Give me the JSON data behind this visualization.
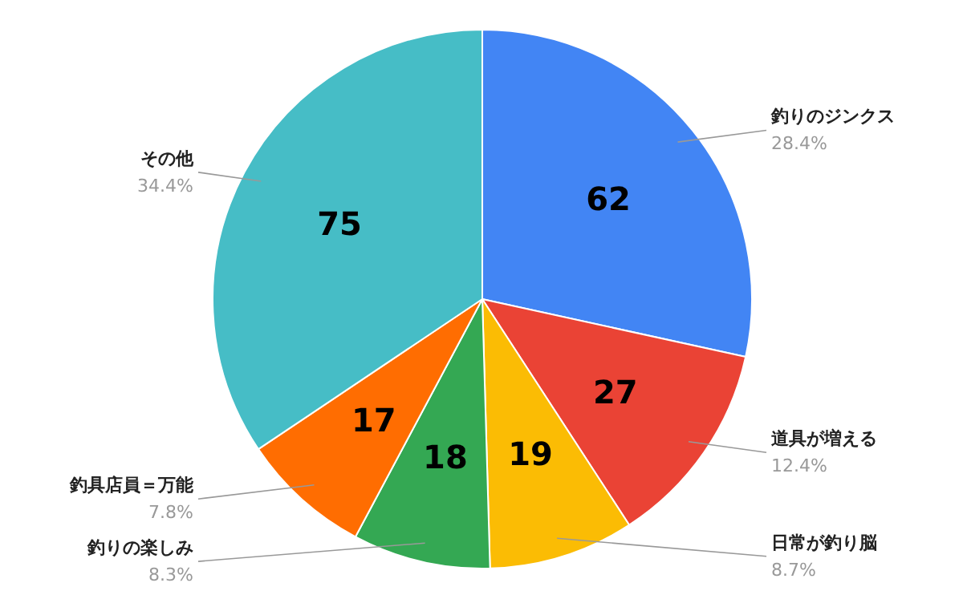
{
  "chart_data": {
    "type": "pie",
    "categories": [
      "釣りのジンクス",
      "道具が増える",
      "日常が釣り脳",
      "釣りの楽しみ",
      "釣具店員＝万能",
      "その他"
    ],
    "values": [
      62,
      27,
      19,
      18,
      17,
      75
    ],
    "colors": [
      "#4285f4",
      "#ea4335",
      "#fbbc04",
      "#34a853",
      "#ff6d01",
      "#46bdc6"
    ],
    "annotations": [
      "28.4%",
      "12.4%",
      "8.7%",
      "8.3%",
      "7.8%",
      "34.4%"
    ],
    "data_labels": true
  }
}
